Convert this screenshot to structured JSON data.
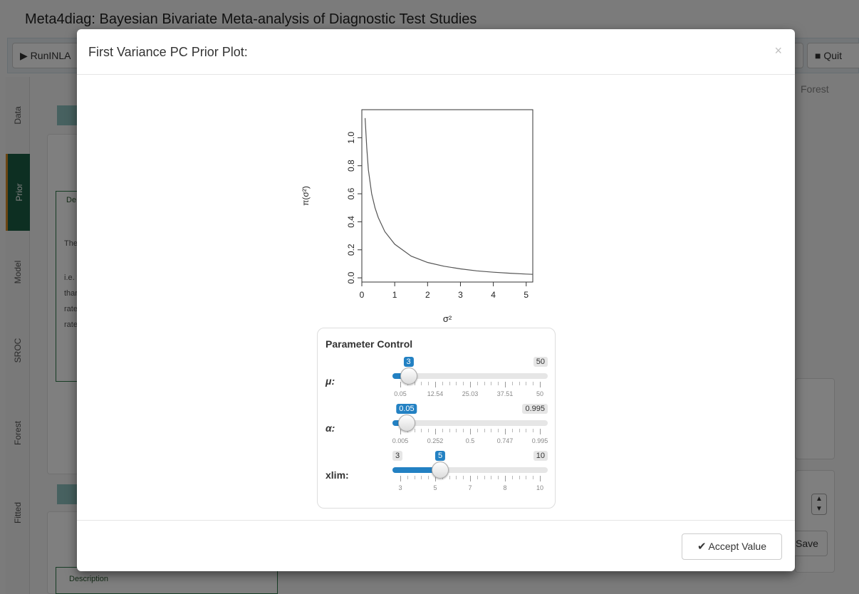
{
  "app": {
    "title": "Meta4diag: Bayesian Bivariate Meta-analysis of Diagnostic Test Studies",
    "run_label": "RunINLA",
    "quit_label": "Quit",
    "forest_tab": "Forest",
    "side_tabs": [
      "Data",
      "Prior",
      "Model",
      "SROC",
      "Forest",
      "Fitted"
    ],
    "box_fragment": "De",
    "description_label": "Description",
    "save_fragment": "Save",
    "text_fragments": [
      "The",
      "i.e. t",
      "thar",
      "rate",
      "rate"
    ]
  },
  "modal": {
    "title": "First Variance PC Prior Plot:",
    "close_symbol": "×",
    "accept_label": "Accept Value"
  },
  "chart_data": {
    "type": "line",
    "title": "",
    "xlabel": "σ²",
    "ylabel": "π(σ²)",
    "xlim": [
      0,
      5.2
    ],
    "ylim": [
      -0.03,
      1.2
    ],
    "xticks": [
      0,
      1,
      2,
      3,
      4,
      5
    ],
    "yticks": [
      0.0,
      0.2,
      0.4,
      0.6,
      0.8,
      1.0
    ],
    "x": [
      0.1,
      0.15,
      0.2,
      0.3,
      0.4,
      0.5,
      0.7,
      1.0,
      1.5,
      2.0,
      2.5,
      3.0,
      3.5,
      4.0,
      4.5,
      5.0,
      5.2
    ],
    "y": [
      1.14,
      0.93,
      0.77,
      0.6,
      0.5,
      0.43,
      0.33,
      0.24,
      0.155,
      0.11,
      0.083,
      0.064,
      0.05,
      0.04,
      0.033,
      0.027,
      0.025
    ],
    "grid": false
  },
  "params": {
    "title": "Parameter Control",
    "sliders": [
      {
        "label": "μ:",
        "min": 0.05,
        "max": 50,
        "value": 3,
        "value_label": "3",
        "max_label": "50",
        "min_label": "",
        "tick_labels": [
          "0.05",
          "12.54",
          "25.03",
          "37.51",
          "50"
        ]
      },
      {
        "label": "α:",
        "min": 0.005,
        "max": 0.995,
        "value": 0.05,
        "value_label": "0.05",
        "max_label": "0.995",
        "min_label": "",
        "tick_labels": [
          "0.005",
          "0.252",
          "0.5",
          "0.747",
          "0.995"
        ]
      },
      {
        "label": "xlim:",
        "min": 3,
        "max": 10,
        "value": 5,
        "value_label": "5",
        "max_label": "10",
        "min_label": "3",
        "tick_labels": [
          "3",
          "5",
          "7",
          "8",
          "10"
        ]
      }
    ]
  },
  "colors": {
    "accent": "#2381c3",
    "active_tab": "#1b5e45",
    "curve": "#555555"
  }
}
